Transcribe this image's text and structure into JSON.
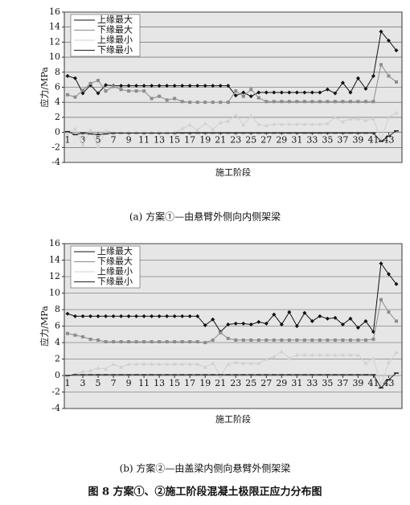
{
  "figure_title": "图 8    方案①、②施工阶段混凝土极限正应力分布图",
  "chart_data": [
    {
      "type": "line",
      "caption": "(a) 方案①—由悬臂外侧向内侧架梁",
      "x_label": "施工阶段",
      "y_label": "应力/MPa",
      "x": [
        1,
        2,
        3,
        4,
        5,
        6,
        7,
        8,
        9,
        10,
        11,
        12,
        13,
        14,
        15,
        16,
        17,
        18,
        19,
        20,
        21,
        22,
        23,
        24,
        25,
        26,
        27,
        28,
        29,
        30,
        31,
        32,
        33,
        34,
        35,
        36,
        37,
        38,
        39,
        40,
        41,
        42,
        43,
        44
      ],
      "xticks": [
        1,
        3,
        5,
        7,
        9,
        11,
        13,
        15,
        17,
        19,
        21,
        23,
        25,
        27,
        29,
        31,
        33,
        35,
        37,
        39,
        41,
        43
      ],
      "xlim": [
        1,
        44
      ],
      "ylim": [
        -4,
        16
      ],
      "yticks": [
        -4,
        -2,
        0,
        2,
        4,
        6,
        8,
        10,
        12,
        14,
        16
      ],
      "grid": true,
      "legend": "upper left",
      "series": [
        {
          "name": "上缘最大",
          "color": "#111111",
          "marker": "diamond",
          "values": [
            7.5,
            7.2,
            5.2,
            6.3,
            5.2,
            6.3,
            6.2,
            6.2,
            6.2,
            6.2,
            6.2,
            6.2,
            6.2,
            6.2,
            6.2,
            6.2,
            6.2,
            6.2,
            6.2,
            6.2,
            6.2,
            6.2,
            4.9,
            5.3,
            4.8,
            5.3,
            5.3,
            5.3,
            5.3,
            5.3,
            5.3,
            5.3,
            5.3,
            5.3,
            5.7,
            5.2,
            6.6,
            5.3,
            7.2,
            5.8,
            7.5,
            13.4,
            12.2,
            10.9
          ]
        },
        {
          "name": "下缘最大",
          "color": "#8c8c8c",
          "marker": "square",
          "values": [
            5.0,
            4.7,
            5.6,
            6.5,
            6.9,
            5.5,
            6.1,
            5.7,
            5.5,
            5.5,
            5.5,
            4.5,
            4.8,
            4.3,
            4.5,
            4.1,
            4.0,
            4.0,
            4.0,
            4.0,
            4.0,
            4.0,
            5.5,
            4.8,
            5.7,
            4.6,
            4.1,
            4.1,
            4.1,
            4.1,
            4.1,
            4.1,
            4.1,
            4.1,
            4.1,
            4.1,
            4.1,
            4.1,
            4.1,
            4.1,
            4.1,
            9.0,
            7.5,
            6.7
          ]
        },
        {
          "name": "上缘最小",
          "color": "#d0d0d0",
          "marker": "triangle",
          "values": [
            -0.1,
            0.5,
            -1.7,
            0.3,
            -1.9,
            0.2,
            0,
            0,
            0,
            0,
            0,
            0,
            0,
            0,
            0,
            0.5,
            1.0,
            0.3,
            1.2,
            0.4,
            1.3,
            1.5,
            2.3,
            1.0,
            2.2,
            1.1,
            0.9,
            1.1,
            1.1,
            1.1,
            1.1,
            1.1,
            1.1,
            1.1,
            1.2,
            2.0,
            1.4,
            1.8,
            1.8,
            1.6,
            1.8,
            -1.0,
            2.0,
            2.6
          ]
        },
        {
          "name": "下缘最小",
          "color": "#222222",
          "marker": "dash",
          "values": [
            0.1,
            -0.3,
            -0.1,
            -0.2,
            -0.3,
            -0.2,
            -0.1,
            -0.1,
            -0.1,
            -0.1,
            -0.1,
            -0.1,
            -0.1,
            -0.1,
            -0.1,
            -0.1,
            -0.1,
            -0.1,
            -0.1,
            -0.1,
            -0.1,
            -0.1,
            -0.1,
            -0.1,
            -0.1,
            -0.1,
            -0.1,
            -0.1,
            -0.1,
            -0.1,
            -0.1,
            -0.1,
            -0.1,
            -0.1,
            -0.1,
            -0.1,
            -0.1,
            -0.1,
            -0.1,
            -0.1,
            -0.1,
            -1.2,
            -0.5,
            0.2
          ]
        }
      ]
    },
    {
      "type": "line",
      "caption": "(b) 方案②—由盖梁内侧向悬臂外侧架梁",
      "x_label": "施工阶段",
      "y_label": "应力/MPa",
      "x": [
        1,
        2,
        3,
        4,
        5,
        6,
        7,
        8,
        9,
        10,
        11,
        12,
        13,
        14,
        15,
        16,
        17,
        18,
        19,
        20,
        21,
        22,
        23,
        24,
        25,
        26,
        27,
        28,
        29,
        30,
        31,
        32,
        33,
        34,
        35,
        36,
        37,
        38,
        39,
        40,
        41,
        42,
        43,
        44
      ],
      "xticks": [
        1,
        3,
        5,
        7,
        9,
        11,
        13,
        15,
        17,
        19,
        21,
        23,
        25,
        27,
        29,
        31,
        33,
        35,
        37,
        39,
        41,
        43
      ],
      "xlim": [
        1,
        44
      ],
      "ylim": [
        -4,
        16
      ],
      "yticks": [
        -4,
        -2,
        0,
        2,
        4,
        6,
        8,
        10,
        12,
        14,
        16
      ],
      "grid": true,
      "legend": "upper left",
      "series": [
        {
          "name": "上缘最大",
          "color": "#111111",
          "marker": "diamond",
          "values": [
            7.5,
            7.2,
            7.2,
            7.2,
            7.2,
            7.2,
            7.2,
            7.2,
            7.2,
            7.2,
            7.2,
            7.2,
            7.2,
            7.2,
            7.2,
            7.2,
            7.2,
            7.2,
            6.1,
            6.8,
            5.3,
            6.2,
            6.3,
            6.3,
            6.2,
            6.5,
            6.3,
            7.4,
            6.2,
            7.7,
            6.0,
            7.6,
            6.6,
            7.2,
            6.9,
            7.0,
            6.2,
            6.9,
            5.8,
            6.6,
            5.3,
            13.6,
            12.3,
            11.1
          ]
        },
        {
          "name": "下缘最大",
          "color": "#8c8c8c",
          "marker": "square",
          "values": [
            5.1,
            4.9,
            4.7,
            4.4,
            4.3,
            4.1,
            4.1,
            4.1,
            4.1,
            4.1,
            4.1,
            4.1,
            4.1,
            4.1,
            4.1,
            4.1,
            4.1,
            4.1,
            4.0,
            4.3,
            5.2,
            4.5,
            4.3,
            4.3,
            4.3,
            4.3,
            4.3,
            4.3,
            4.3,
            4.3,
            4.3,
            4.3,
            4.3,
            4.3,
            4.3,
            4.3,
            4.3,
            4.3,
            4.3,
            4.3,
            4.4,
            9.2,
            7.7,
            6.6
          ]
        },
        {
          "name": "上缘最小",
          "color": "#d0d0d0",
          "marker": "triangle",
          "values": [
            -0.1,
            0.2,
            0.5,
            0.6,
            0.9,
            0.8,
            1.4,
            1.0,
            1.4,
            1.4,
            1.4,
            1.4,
            1.4,
            1.4,
            1.4,
            1.4,
            1.4,
            1.4,
            1.0,
            1.5,
            -0.1,
            1.4,
            1.6,
            1.5,
            1.5,
            1.5,
            2.0,
            2.3,
            2.9,
            2.1,
            2.5,
            2.5,
            2.5,
            2.5,
            2.5,
            2.5,
            2.5,
            2.5,
            2.5,
            1.5,
            2.1,
            -1.2,
            1.6,
            2.8
          ]
        },
        {
          "name": "下缘最小",
          "color": "#222222",
          "marker": "dash",
          "values": [
            0.0,
            0.1,
            0.1,
            0.1,
            0.1,
            0.1,
            0.1,
            0.1,
            0.1,
            0.1,
            0.1,
            0.1,
            0.1,
            0.1,
            0.1,
            0.1,
            0.1,
            0.1,
            0.1,
            0.1,
            0.1,
            0.1,
            0.1,
            0.1,
            0.1,
            0.1,
            0.1,
            0.1,
            0.1,
            0.1,
            0.1,
            0.1,
            0.1,
            0.1,
            0.1,
            0.1,
            0.1,
            0.1,
            0.1,
            0.1,
            0.1,
            -1.5,
            -0.5,
            0.3
          ]
        }
      ]
    }
  ]
}
